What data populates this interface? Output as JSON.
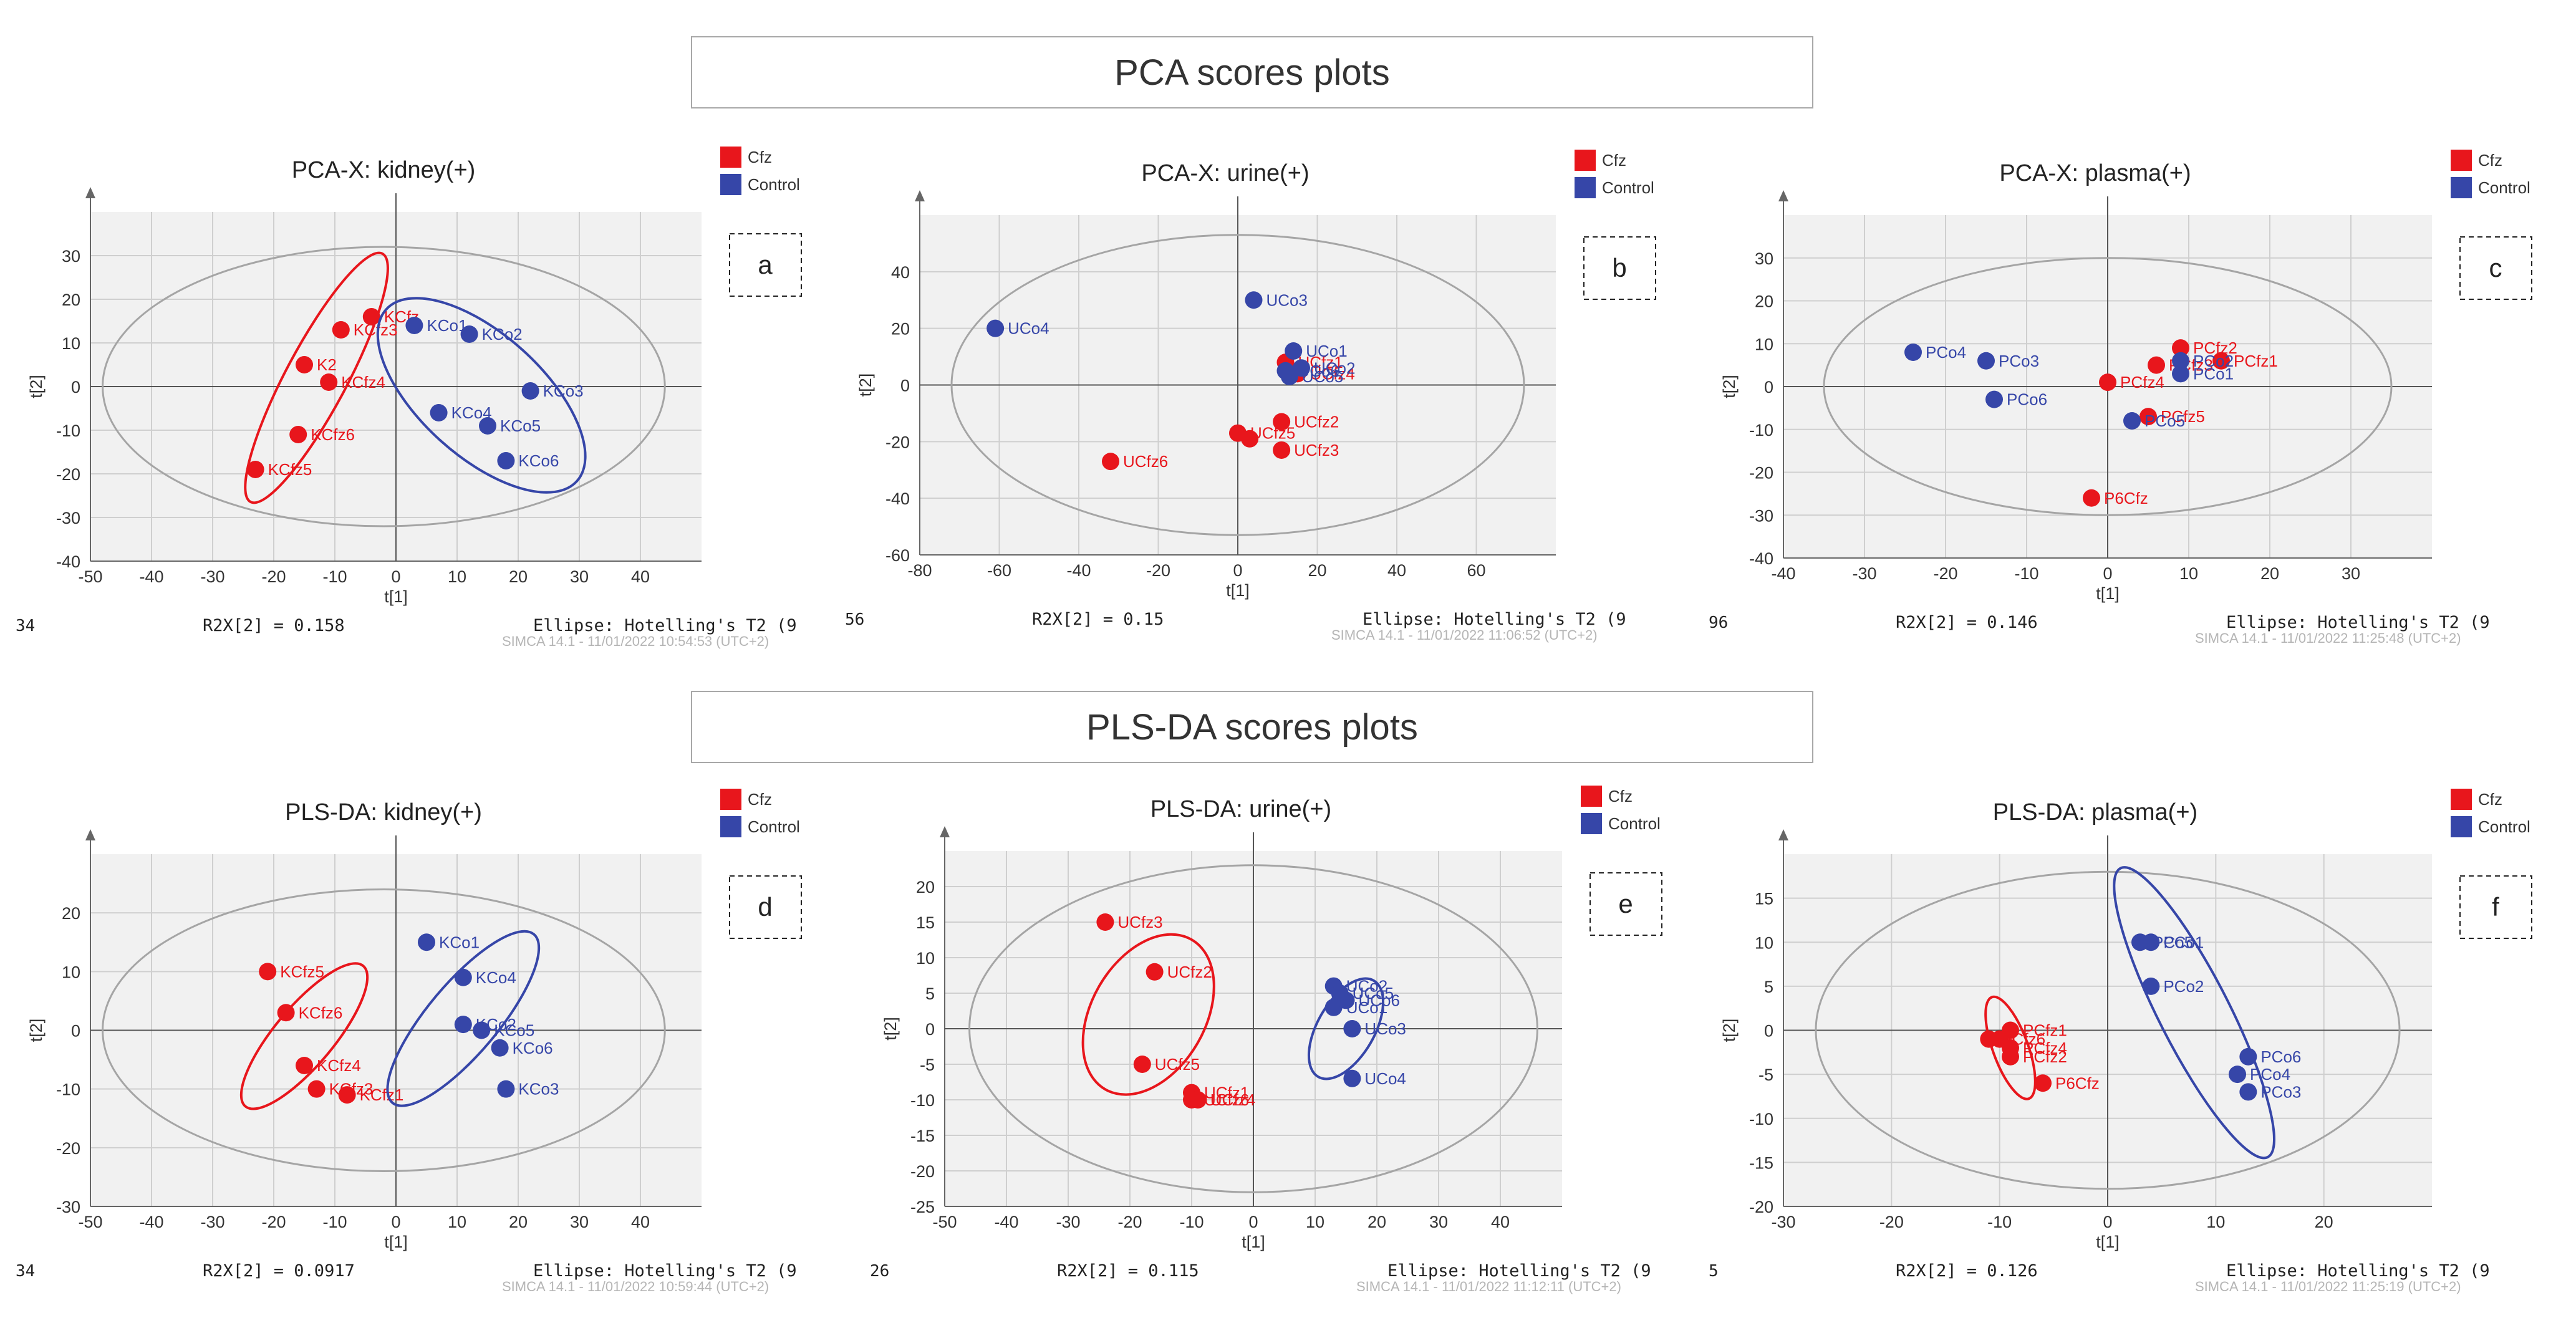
{
  "sections": {
    "pca_title": "PCA scores plots",
    "plsda_title": "PLS-DA scores plots"
  },
  "legend": {
    "cfz": "Cfz",
    "control": "Control"
  },
  "colors": {
    "cfz": "#e8161c",
    "control": "#3646a8",
    "grid": "#cfcfcf",
    "plot_bg": "#f1f1f1",
    "axis": "#666666"
  },
  "chart_data": [
    {
      "type": "scatter",
      "title": "PCA-X: kidney(+)",
      "panel_label": "a",
      "xlabel": "t[1]",
      "ylabel": "t[2]",
      "xlim": [
        -50,
        50
      ],
      "ylim": [
        -40,
        40
      ],
      "xticks": [
        -50,
        -40,
        -30,
        -20,
        -10,
        0,
        10,
        20,
        30,
        40
      ],
      "yticks": [
        -40,
        -30,
        -20,
        -10,
        0,
        10,
        20,
        30
      ],
      "hotelling": {
        "cx": -2,
        "cy": 0,
        "rx": 46,
        "ry": 32
      },
      "footer_left": "34",
      "footer_r2x": "R2X[2] = 0.158",
      "footer_ellipse": "Ellipse: Hotelling's T2 (9",
      "watermark": "SIMCA 14.1 - 11/01/2022 10:54:53 (UTC+2)",
      "series": [
        {
          "name": "Cfz",
          "ellipse": {
            "cx": -13,
            "cy": 2,
            "rx": 23,
            "ry": 7,
            "angle": 62
          },
          "points": [
            {
              "label": "KCfz",
              "x": -4,
              "y": 16
            },
            {
              "label": "KCfz3",
              "x": -9,
              "y": 13
            },
            {
              "label": "K2",
              "x": -15,
              "y": 5
            },
            {
              "label": "KCfz4",
              "x": -11,
              "y": 1
            },
            {
              "label": "KCfz6",
              "x": -16,
              "y": -11
            },
            {
              "label": "KCfz5",
              "x": -23,
              "y": -19
            }
          ]
        },
        {
          "name": "Control",
          "ellipse": {
            "cx": 14,
            "cy": -2,
            "rx": 21,
            "ry": 14,
            "angle": -42
          },
          "points": [
            {
              "label": "KCo1",
              "x": 3,
              "y": 14
            },
            {
              "label": "KCo2",
              "x": 12,
              "y": 12
            },
            {
              "label": "KCo3",
              "x": 22,
              "y": -1
            },
            {
              "label": "KCo4",
              "x": 7,
              "y": -6
            },
            {
              "label": "KCo5",
              "x": 15,
              "y": -9
            },
            {
              "label": "KCo6",
              "x": 18,
              "y": -17
            }
          ]
        }
      ]
    },
    {
      "type": "scatter",
      "title": "PCA-X: urine(+)",
      "panel_label": "b",
      "xlabel": "t[1]",
      "ylabel": "t[2]",
      "xlim": [
        -80,
        80
      ],
      "ylim": [
        -60,
        60
      ],
      "xticks": [
        -80,
        -60,
        -40,
        -20,
        0,
        20,
        40,
        60
      ],
      "yticks": [
        -60,
        -40,
        -20,
        0,
        20,
        40
      ],
      "hotelling": {
        "cx": 0,
        "cy": 0,
        "rx": 72,
        "ry": 53
      },
      "footer_left": "56",
      "footer_r2x": "R2X[2] = 0.15",
      "footer_ellipse": "Ellipse: Hotelling's T2 (9",
      "watermark": "SIMCA 14.1 - 11/01/2022 11:06:52 (UTC+2)",
      "series": [
        {
          "name": "Cfz",
          "ellipse": null,
          "points": [
            {
              "label": "UCfz1",
              "x": 12,
              "y": 8
            },
            {
              "label": "UCfz4",
              "x": 15,
              "y": 4
            },
            {
              "label": "UCfz2",
              "x": 11,
              "y": -13
            },
            {
              "label": "UCfz5",
              "x": 0,
              "y": -17
            },
            {
              "label": "",
              "x": 3,
              "y": -19
            },
            {
              "label": "UCfz3",
              "x": 11,
              "y": -23
            },
            {
              "label": "UCfz6",
              "x": -32,
              "y": -27
            }
          ]
        },
        {
          "name": "Control",
          "ellipse": null,
          "points": [
            {
              "label": "UCo3",
              "x": 4,
              "y": 30
            },
            {
              "label": "UCo1",
              "x": 14,
              "y": 12
            },
            {
              "label": "UCo6",
              "x": 12,
              "y": 5
            },
            {
              "label": "UCo2",
              "x": 16,
              "y": 6
            },
            {
              "label": "UCo5",
              "x": 13,
              "y": 3
            },
            {
              "label": "UCo4",
              "x": -61,
              "y": 20
            }
          ]
        }
      ]
    },
    {
      "type": "scatter",
      "title": "PCA-X: plasma(+)",
      "panel_label": "c",
      "xlabel": "t[1]",
      "ylabel": "t[2]",
      "xlim": [
        -40,
        40
      ],
      "ylim": [
        -40,
        40
      ],
      "xticks": [
        -40,
        -30,
        -20,
        -10,
        0,
        10,
        20,
        30
      ],
      "yticks": [
        -40,
        -30,
        -20,
        -10,
        0,
        10,
        20,
        30
      ],
      "hotelling": {
        "cx": 0,
        "cy": 0,
        "rx": 35,
        "ry": 30
      },
      "footer_left": "96",
      "footer_r2x": "R2X[2] = 0.146",
      "footer_ellipse": "Ellipse: Hotelling's T2 (9",
      "watermark": "SIMCA 14.1 - 11/01/2022 11:25:48 (UTC+2)",
      "series": [
        {
          "name": "Cfz",
          "ellipse": null,
          "points": [
            {
              "label": "PCfz2",
              "x": 9,
              "y": 9
            },
            {
              "label": "PCfz1",
              "x": 14,
              "y": 6
            },
            {
              "label": "PCfz4",
              "x": 0,
              "y": 1
            },
            {
              "label": "PCfz3",
              "x": 6,
              "y": 5
            },
            {
              "label": "PCfz5",
              "x": 5,
              "y": -7
            },
            {
              "label": "P6Cfz",
              "x": -2,
              "y": -26
            }
          ]
        },
        {
          "name": "Control",
          "ellipse": null,
          "points": [
            {
              "label": "PCo4",
              "x": -24,
              "y": 8
            },
            {
              "label": "PCo3",
              "x": -15,
              "y": 6
            },
            {
              "label": "PCo6",
              "x": -14,
              "y": -3
            },
            {
              "label": "PCo2",
              "x": 9,
              "y": 6
            },
            {
              "label": "PCo1",
              "x": 9,
              "y": 3
            },
            {
              "label": "PCo5",
              "x": 3,
              "y": -8
            }
          ]
        }
      ]
    },
    {
      "type": "scatter",
      "title": "PLS-DA: kidney(+)",
      "panel_label": "d",
      "xlabel": "t[1]",
      "ylabel": "t[2]",
      "xlim": [
        -50,
        50
      ],
      "ylim": [
        -30,
        30
      ],
      "xticks": [
        -50,
        -40,
        -30,
        -20,
        -10,
        0,
        10,
        20,
        30,
        40
      ],
      "yticks": [
        -30,
        -20,
        -10,
        0,
        10,
        20
      ],
      "hotelling": {
        "cx": -2,
        "cy": 0,
        "rx": 46,
        "ry": 24
      },
      "footer_left": "34",
      "footer_r2x": "R2X[2] = 0.0917",
      "footer_ellipse": "Ellipse: Hotelling's T2 (9",
      "watermark": "SIMCA 14.1 - 11/01/2022 10:59:44 (UTC+2)",
      "series": [
        {
          "name": "Cfz",
          "ellipse": {
            "cx": -15,
            "cy": -1,
            "rx": 15,
            "ry": 5,
            "angle": 50
          },
          "points": [
            {
              "label": "KCfz5",
              "x": -21,
              "y": 10
            },
            {
              "label": "KCfz6",
              "x": -18,
              "y": 3
            },
            {
              "label": "KCfz4",
              "x": -15,
              "y": -6
            },
            {
              "label": "KCfz3",
              "x": -13,
              "y": -10
            },
            {
              "label": "KCfz1",
              "x": -8,
              "y": -11
            }
          ]
        },
        {
          "name": "Control",
          "ellipse": {
            "cx": 11,
            "cy": 2,
            "rx": 18,
            "ry": 6,
            "angle": 50
          },
          "points": [
            {
              "label": "KCo1",
              "x": 5,
              "y": 15
            },
            {
              "label": "KCo4",
              "x": 11,
              "y": 9
            },
            {
              "label": "KCo2",
              "x": 11,
              "y": 1
            },
            {
              "label": "KCo5",
              "x": 14,
              "y": 0
            },
            {
              "label": "KCo6",
              "x": 17,
              "y": -3
            },
            {
              "label": "KCo3",
              "x": 18,
              "y": -10
            }
          ]
        }
      ]
    },
    {
      "type": "scatter",
      "title": "PLS-DA: urine(+)",
      "panel_label": "e",
      "xlabel": "t[1]",
      "ylabel": "t[2]",
      "xlim": [
        -50,
        50
      ],
      "ylim": [
        -25,
        25
      ],
      "xticks": [
        -50,
        -40,
        -30,
        -20,
        -10,
        0,
        10,
        20,
        30,
        40
      ],
      "yticks": [
        -25,
        -20,
        -15,
        -10,
        -5,
        0,
        5,
        10,
        15,
        20
      ],
      "hotelling": {
        "cx": 0,
        "cy": 0,
        "rx": 46,
        "ry": 23
      },
      "footer_left": "26",
      "footer_r2x": "R2X[2] = 0.115",
      "footer_ellipse": "Ellipse: Hotelling's T2 (9",
      "watermark": "SIMCA 14.1 - 11/01/2022 11:12:11 (UTC+2)",
      "series": [
        {
          "name": "Cfz",
          "ellipse": {
            "cx": -17,
            "cy": 2,
            "rx": 14,
            "ry": 8,
            "angle": 60
          },
          "points": [
            {
              "label": "UCfz3",
              "x": -24,
              "y": 15
            },
            {
              "label": "UCfz2",
              "x": -16,
              "y": 8
            },
            {
              "label": "UCfz5",
              "x": -18,
              "y": -5
            },
            {
              "label": "UCfz1",
              "x": -10,
              "y": -9
            },
            {
              "label": "UCfz6",
              "x": -10,
              "y": -10
            },
            {
              "label": "UCfz4",
              "x": -9,
              "y": -10
            }
          ]
        },
        {
          "name": "Control",
          "ellipse": {
            "cx": 15,
            "cy": 0,
            "rx": 9,
            "ry": 4,
            "angle": 60
          },
          "points": [
            {
              "label": "UCo2",
              "x": 13,
              "y": 6
            },
            {
              "label": "UCo5",
              "x": 14,
              "y": 5
            },
            {
              "label": "UCo1",
              "x": 13,
              "y": 3
            },
            {
              "label": "UCo6",
              "x": 15,
              "y": 4
            },
            {
              "label": "UCo3",
              "x": 16,
              "y": 0
            },
            {
              "label": "UCo4",
              "x": 16,
              "y": -7
            }
          ]
        }
      ]
    },
    {
      "type": "scatter",
      "title": "PLS-DA: plasma(+)",
      "panel_label": "f",
      "xlabel": "t[1]",
      "ylabel": "t[2]",
      "xlim": [
        -30,
        30
      ],
      "ylim": [
        -20,
        20
      ],
      "xticks": [
        -30,
        -20,
        -10,
        0,
        10,
        20
      ],
      "yticks": [
        -20,
        -15,
        -10,
        -5,
        0,
        5,
        10,
        15
      ],
      "hotelling": {
        "cx": 0,
        "cy": 0,
        "rx": 27,
        "ry": 18
      },
      "footer_left": "5",
      "footer_r2x": "R2X[2] = 0.126",
      "footer_ellipse": "Ellipse: Hotelling's T2 (9",
      "watermark": "SIMCA 14.1 - 11/01/2022 11:25:19 (UTC+2)",
      "series": [
        {
          "name": "Cfz",
          "ellipse": {
            "cx": -9,
            "cy": -2,
            "rx": 5,
            "ry": 2,
            "angle": -70
          },
          "points": [
            {
              "label": "PCfz1",
              "x": -9,
              "y": 0
            },
            {
              "label": "PCfz6",
              "x": -11,
              "y": -1
            },
            {
              "label": "",
              "x": -10,
              "y": -1
            },
            {
              "label": "PCfz4",
              "x": -9,
              "y": -2
            },
            {
              "label": "PCfz2",
              "x": -9,
              "y": -3
            },
            {
              "label": "P6Cfz",
              "x": -6,
              "y": -6
            }
          ]
        },
        {
          "name": "Control",
          "ellipse": {
            "cx": 8,
            "cy": 2,
            "rx": 15,
            "ry": 4,
            "angle": -63
          },
          "points": [
            {
              "label": "PCo5",
              "x": 3,
              "y": 10
            },
            {
              "label": "PCo1",
              "x": 4,
              "y": 10
            },
            {
              "label": "PCo2",
              "x": 4,
              "y": 5
            },
            {
              "label": "PCo6",
              "x": 13,
              "y": -3
            },
            {
              "label": "PCo4",
              "x": 12,
              "y": -5
            },
            {
              "label": "PCo3",
              "x": 13,
              "y": -7
            }
          ]
        }
      ]
    }
  ]
}
